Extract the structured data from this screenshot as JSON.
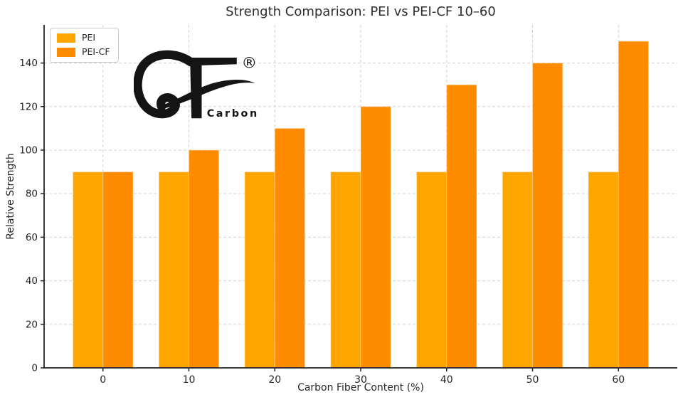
{
  "chart_data": {
    "type": "bar",
    "title": "Strength Comparison: PEI vs PEI-CF 10–60",
    "xlabel": "Carbon Fiber Content (%)",
    "ylabel": "Relative Strength",
    "categories": [
      "0",
      "10",
      "20",
      "30",
      "40",
      "50",
      "60"
    ],
    "series": [
      {
        "name": "PEI",
        "color": "#FFA500",
        "values": [
          90,
          90,
          90,
          90,
          90,
          90,
          90
        ]
      },
      {
        "name": "PEI-CF",
        "color": "#FF8C00",
        "values": [
          90,
          100,
          110,
          120,
          130,
          140,
          150
        ]
      }
    ],
    "ylim": [
      0,
      157.5
    ],
    "yticks": [
      0,
      20,
      40,
      60,
      80,
      100,
      120,
      140
    ],
    "grid": true,
    "grid_style": "dashed",
    "legend_position": "upper left"
  },
  "legend": {
    "items": [
      {
        "label": "PEI"
      },
      {
        "label": "PEI-CF"
      }
    ]
  },
  "logo": {
    "icon": "cf-monogram",
    "wordmark": "Carbon",
    "registered_mark": "®",
    "color": "#141414"
  }
}
